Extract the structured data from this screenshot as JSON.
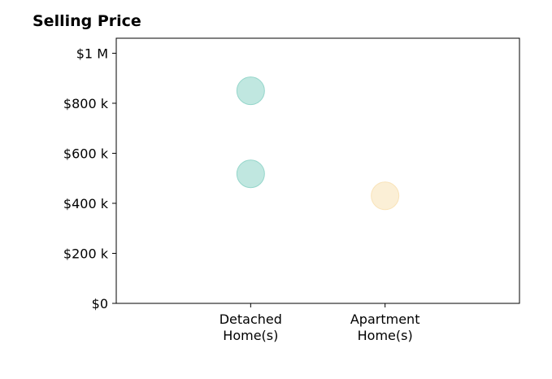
{
  "chart_data": {
    "type": "scatter",
    "title": "Selling Price",
    "xlabel": "",
    "ylabel": "",
    "categories": [
      {
        "label_lines": [
          "Detached",
          "Home(s)"
        ]
      },
      {
        "label_lines": [
          "Apartment",
          "Home(s)"
        ]
      }
    ],
    "xlim": [
      -1,
      2
    ],
    "ylim": [
      0,
      1060000
    ],
    "yticks": [
      {
        "value": 0,
        "label": "$0"
      },
      {
        "value": 200000,
        "label": "$200 k"
      },
      {
        "value": 400000,
        "label": "$400 k"
      },
      {
        "value": 600000,
        "label": "$600 k"
      },
      {
        "value": 800000,
        "label": "$800 k"
      },
      {
        "value": 1000000,
        "label": "$1 M"
      }
    ],
    "points": [
      {
        "category": 0,
        "value": 850000,
        "color": "#8dd3c7"
      },
      {
        "category": 0,
        "value": 518000,
        "color": "#8dd3c7"
      },
      {
        "category": 1,
        "value": 430000,
        "color": "#f8e1b4"
      }
    ],
    "grid": false,
    "legend": "none"
  }
}
